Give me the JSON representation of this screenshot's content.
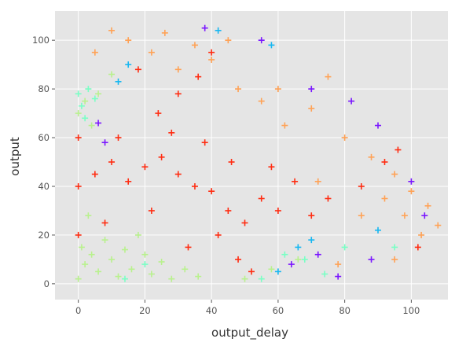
{
  "chart_data": {
    "type": "scatter",
    "title": "",
    "xlabel": "output_delay",
    "ylabel": "output",
    "xlim": [
      -7,
      111
    ],
    "ylim": [
      -6.5,
      112
    ],
    "xticks": [
      0,
      20,
      40,
      60,
      80,
      100
    ],
    "yticks": [
      0,
      20,
      40,
      60,
      80,
      100
    ],
    "grid": true,
    "marker": "plus",
    "background": "#e5e5e5",
    "series": [
      {
        "color": "#ff2d12",
        "values": [
          [
            20,
            48
          ],
          [
            25,
            52
          ],
          [
            30,
            45
          ],
          [
            35,
            40
          ],
          [
            40,
            38
          ],
          [
            45,
            30
          ],
          [
            50,
            25
          ],
          [
            22,
            30
          ],
          [
            28,
            62
          ],
          [
            38,
            58
          ],
          [
            46,
            50
          ],
          [
            55,
            35
          ],
          [
            15,
            42
          ],
          [
            10,
            50
          ],
          [
            5,
            45
          ],
          [
            0,
            40
          ],
          [
            0,
            20
          ],
          [
            0,
            60
          ],
          [
            60,
            30
          ],
          [
            65,
            42
          ],
          [
            70,
            28
          ],
          [
            42,
            20
          ],
          [
            33,
            15
          ],
          [
            48,
            10
          ],
          [
            52,
            5
          ],
          [
            24,
            70
          ],
          [
            30,
            78
          ],
          [
            36,
            85
          ],
          [
            40,
            95
          ],
          [
            18,
            88
          ],
          [
            12,
            60
          ],
          [
            8,
            25
          ],
          [
            58,
            48
          ],
          [
            75,
            35
          ],
          [
            85,
            40
          ],
          [
            92,
            50
          ],
          [
            96,
            55
          ],
          [
            102,
            15
          ]
        ]
      },
      {
        "color": "#ffa256",
        "values": [
          [
            30,
            88
          ],
          [
            40,
            92
          ],
          [
            45,
            100
          ],
          [
            26,
            103
          ],
          [
            60,
            80
          ],
          [
            70,
            72
          ],
          [
            80,
            60
          ],
          [
            88,
            52
          ],
          [
            95,
            45
          ],
          [
            100,
            38
          ],
          [
            105,
            32
          ],
          [
            108,
            24
          ],
          [
            103,
            20
          ],
          [
            98,
            28
          ],
          [
            92,
            35
          ],
          [
            85,
            28
          ],
          [
            78,
            8
          ],
          [
            62,
            65
          ],
          [
            55,
            75
          ],
          [
            48,
            80
          ],
          [
            35,
            98
          ],
          [
            22,
            95
          ],
          [
            15,
            100
          ],
          [
            10,
            104
          ],
          [
            5,
            95
          ],
          [
            75,
            85
          ],
          [
            72,
            42
          ],
          [
            95,
            10
          ]
        ]
      },
      {
        "color": "#b9f18e",
        "values": [
          [
            0,
            2
          ],
          [
            2,
            8
          ],
          [
            4,
            12
          ],
          [
            6,
            5
          ],
          [
            8,
            18
          ],
          [
            10,
            10
          ],
          [
            12,
            3
          ],
          [
            14,
            14
          ],
          [
            16,
            6
          ],
          [
            18,
            20
          ],
          [
            3,
            28
          ],
          [
            1,
            15
          ],
          [
            20,
            12
          ],
          [
            22,
            4
          ],
          [
            25,
            9
          ],
          [
            28,
            2
          ],
          [
            32,
            6
          ],
          [
            36,
            3
          ],
          [
            0,
            70
          ],
          [
            2,
            75
          ],
          [
            4,
            65
          ],
          [
            6,
            78
          ],
          [
            10,
            86
          ],
          [
            50,
            2
          ],
          [
            58,
            6
          ],
          [
            66,
            10
          ]
        ]
      },
      {
        "color": "#7affc5",
        "values": [
          [
            0,
            78
          ],
          [
            1,
            73
          ],
          [
            3,
            80
          ],
          [
            2,
            68
          ],
          [
            5,
            76
          ],
          [
            55,
            2
          ],
          [
            62,
            12
          ],
          [
            68,
            10
          ],
          [
            74,
            4
          ],
          [
            80,
            15
          ],
          [
            95,
            15
          ],
          [
            20,
            8
          ],
          [
            14,
            2
          ]
        ]
      },
      {
        "color": "#17b7f1",
        "values": [
          [
            15,
            90
          ],
          [
            12,
            83
          ],
          [
            42,
            104
          ],
          [
            58,
            98
          ],
          [
            66,
            15
          ],
          [
            70,
            18
          ],
          [
            60,
            5
          ],
          [
            90,
            22
          ]
        ]
      },
      {
        "color": "#7a16ff",
        "values": [
          [
            38,
            105
          ],
          [
            55,
            100
          ],
          [
            70,
            80
          ],
          [
            82,
            75
          ],
          [
            90,
            65
          ],
          [
            100,
            42
          ],
          [
            104,
            28
          ],
          [
            88,
            10
          ],
          [
            78,
            3
          ],
          [
            72,
            12
          ],
          [
            64,
            8
          ],
          [
            6,
            66
          ],
          [
            8,
            58
          ]
        ]
      }
    ]
  }
}
